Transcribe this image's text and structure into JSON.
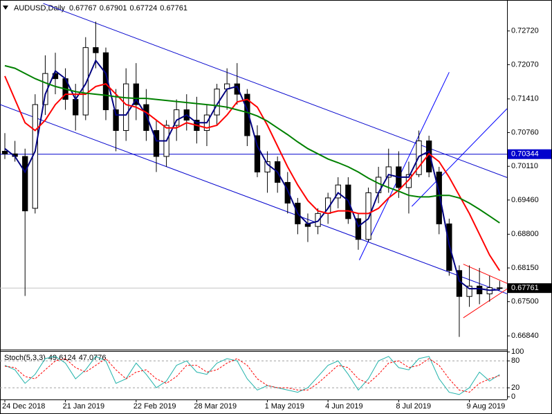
{
  "chart_data": [
    {
      "type": "candlestick",
      "title": "AUDUSD,Daily",
      "xlim": [
        -0.48,
        49.73
      ],
      "xticks": [
        {
          "value": 0,
          "label": "24 Dec 2018"
        },
        {
          "value": 6,
          "label": "21 Jan 2019"
        },
        {
          "value": 13,
          "label": "22 Feb 2019"
        },
        {
          "value": 19,
          "label": "28 Mar 2019"
        },
        {
          "value": 26,
          "label": "1 May 2019"
        },
        {
          "value": 32,
          "label": "4 Jun 2019"
        },
        {
          "value": 39,
          "label": "8 Jul 2019"
        },
        {
          "value": 46,
          "label": "9 Aug 2019"
        }
      ],
      "ylim": [
        0.66575,
        0.73317
      ],
      "yticks": [
        {
          "value": 0.6684,
          "label": "0.66840"
        },
        {
          "value": 0.675,
          "label": "0.67500"
        },
        {
          "value": 0.6815,
          "label": "0.68150"
        },
        {
          "value": 0.688,
          "label": "0.68800"
        },
        {
          "value": 0.6946,
          "label": "0.69460"
        },
        {
          "value": 0.7011,
          "label": "0.70110"
        },
        {
          "value": 0.7076,
          "label": "0.70760"
        },
        {
          "value": 0.7141,
          "label": "0.71410"
        },
        {
          "value": 0.7207,
          "label": "0.72070"
        },
        {
          "value": 0.7272,
          "label": "0.72720"
        }
      ],
      "open": [
        0.704,
        0.7035,
        0.703,
        0.693,
        0.713,
        0.719,
        0.718,
        0.714,
        0.711,
        0.724,
        0.723,
        0.712,
        0.708,
        0.717,
        0.713,
        0.708,
        0.703,
        0.709,
        0.712,
        0.71,
        0.708,
        0.711,
        0.716,
        0.717,
        0.715,
        0.707,
        0.7,
        0.702,
        0.698,
        0.694,
        0.69,
        0.6895,
        0.692,
        0.695,
        0.6975,
        0.691,
        0.687,
        0.696,
        0.699,
        0.701,
        0.697,
        0.6995,
        0.706,
        0.7,
        0.69,
        0.681,
        0.676,
        0.678,
        0.6765,
        0.67767
      ],
      "high": [
        0.7075,
        0.706,
        0.7045,
        0.715,
        0.7225,
        0.723,
        0.72,
        0.717,
        0.726,
        0.729,
        0.724,
        0.716,
        0.72,
        0.721,
        0.716,
        0.71,
        0.71,
        0.714,
        0.715,
        0.7145,
        0.713,
        0.717,
        0.72,
        0.721,
        0.716,
        0.709,
        0.704,
        0.703,
        0.7,
        0.695,
        0.692,
        0.693,
        0.696,
        0.699,
        0.699,
        0.692,
        0.697,
        0.701,
        0.7045,
        0.704,
        0.702,
        0.708,
        0.707,
        0.701,
        0.691,
        0.682,
        0.682,
        0.6815,
        0.68,
        0.67901
      ],
      "low": [
        0.7025,
        0.702,
        0.6761,
        0.692,
        0.711,
        0.715,
        0.712,
        0.708,
        0.71,
        0.72,
        0.71,
        0.704,
        0.706,
        0.71,
        0.706,
        0.7,
        0.701,
        0.706,
        0.708,
        0.7055,
        0.705,
        0.709,
        0.712,
        0.713,
        0.705,
        0.699,
        0.696,
        0.696,
        0.692,
        0.688,
        0.6865,
        0.688,
        0.69,
        0.693,
        0.69,
        0.685,
        0.6865,
        0.694,
        0.696,
        0.695,
        0.692,
        0.699,
        0.699,
        0.688,
        0.68,
        0.6682,
        0.674,
        0.6745,
        0.675,
        0.67724
      ],
      "close": [
        0.7035,
        0.703,
        0.6925,
        0.713,
        0.719,
        0.718,
        0.714,
        0.711,
        0.724,
        0.723,
        0.712,
        0.708,
        0.717,
        0.713,
        0.708,
        0.703,
        0.709,
        0.712,
        0.71,
        0.708,
        0.711,
        0.716,
        0.717,
        0.715,
        0.707,
        0.7,
        0.702,
        0.698,
        0.694,
        0.69,
        0.6895,
        0.692,
        0.695,
        0.6975,
        0.691,
        0.687,
        0.696,
        0.699,
        0.701,
        0.697,
        0.6995,
        0.706,
        0.7,
        0.69,
        0.681,
        0.676,
        0.678,
        0.6765,
        0.6777,
        0.67761
      ],
      "up_color": "#ffffff",
      "down_color": "#000000",
      "series": [
        {
          "color": "#000080",
          "values": [
            0.7045,
            0.703,
            0.7,
            0.704,
            0.715,
            0.7195,
            0.718,
            0.714,
            0.717,
            0.7215,
            0.719,
            0.711,
            0.711,
            0.714,
            0.711,
            0.706,
            0.706,
            0.71,
            0.711,
            0.7095,
            0.7095,
            0.713,
            0.716,
            0.7165,
            0.712,
            0.705,
            0.7015,
            0.7,
            0.6965,
            0.692,
            0.69,
            0.6905,
            0.693,
            0.696,
            0.6945,
            0.6895,
            0.691,
            0.696,
            0.6995,
            0.699,
            0.699,
            0.703,
            0.704,
            0.696,
            0.686,
            0.679,
            0.6775,
            0.6775,
            0.6772,
            0.6773
          ]
        },
        {
          "color": "#ff0000",
          "values": [
            0.7185,
            0.714,
            0.7095,
            0.708,
            0.71,
            0.713,
            0.715,
            0.715,
            0.715,
            0.7165,
            0.717,
            0.715,
            0.713,
            0.7125,
            0.7115,
            0.71,
            0.7085,
            0.7085,
            0.7095,
            0.709,
            0.7085,
            0.709,
            0.711,
            0.7135,
            0.714,
            0.7125,
            0.709,
            0.705,
            0.701,
            0.6975,
            0.6945,
            0.6925,
            0.692,
            0.6925,
            0.6925,
            0.692,
            0.692,
            0.693,
            0.695,
            0.6965,
            0.6985,
            0.701,
            0.7035,
            0.702,
            0.699,
            0.6955,
            0.692,
            0.688,
            0.684,
            0.681
          ]
        },
        {
          "color": "#008000",
          "values": [
            0.7205,
            0.72,
            0.719,
            0.718,
            0.7172,
            0.7165,
            0.716,
            0.7155,
            0.7152,
            0.715,
            0.7148,
            0.7145,
            0.7143,
            0.7142,
            0.7142,
            0.714,
            0.7138,
            0.7136,
            0.7134,
            0.7132,
            0.713,
            0.7128,
            0.7125,
            0.712,
            0.7115,
            0.7108,
            0.7098,
            0.7085,
            0.7072,
            0.7058,
            0.7045,
            0.7035,
            0.7025,
            0.7018,
            0.701,
            0.7,
            0.6988,
            0.6978,
            0.697,
            0.6963,
            0.6955,
            0.6952,
            0.6952,
            0.6955,
            0.6955,
            0.695,
            0.694,
            0.6928,
            0.6915,
            0.6902
          ]
        }
      ],
      "hlines": [
        {
          "value": 0.70344,
          "color": "#0000cd"
        }
      ],
      "trendlines": [
        {
          "x": [
            3.8,
            49.73
          ],
          "y": [
            0.73251,
            0.69894
          ],
          "color": "#0000cd"
        },
        {
          "x": [
            -0.48,
            49.73
          ],
          "y": [
            0.71301,
            0.67652
          ],
          "color": "#0000cd"
        },
        {
          "x": [
            35.1,
            44.0
          ],
          "y": [
            0.68302,
            0.71924
          ],
          "color": "#0000ff"
        },
        {
          "x": [
            40.3,
            49.73
          ],
          "y": [
            0.69337,
            0.71221
          ],
          "color": "#0000ff"
        },
        {
          "x": [
            45.4,
            49.73
          ],
          "y": [
            0.68223,
            0.67852
          ],
          "color": "#ff0000"
        },
        {
          "x": [
            45.4,
            49.73
          ],
          "y": [
            0.67188,
            0.67745
          ],
          "color": "#ff0000"
        }
      ]
    },
    {
      "type": "line",
      "title": "Stoch(5,3,3)",
      "ylim": [
        -6,
        102
      ],
      "yticks": [
        0,
        20,
        80,
        100
      ],
      "levels": [
        20,
        80
      ],
      "series": [
        {
          "color": "#20b2aa",
          "values": [
            70,
            60,
            30,
            50,
            85,
            90,
            75,
            40,
            60,
            90,
            80,
            30,
            40,
            75,
            50,
            20,
            35,
            70,
            80,
            55,
            50,
            75,
            85,
            80,
            40,
            15,
            25,
            20,
            15,
            10,
            20,
            45,
            70,
            80,
            50,
            15,
            40,
            80,
            90,
            65,
            60,
            85,
            90,
            40,
            10,
            5,
            20,
            55,
            35,
            49.6124
          ]
        },
        {
          "color": "#ff0000",
          "dashed": true,
          "values": [
            68,
            65,
            45,
            40,
            60,
            80,
            85,
            65,
            55,
            70,
            85,
            60,
            40,
            55,
            60,
            40,
            30,
            45,
            70,
            70,
            55,
            60,
            75,
            85,
            70,
            40,
            25,
            20,
            20,
            15,
            15,
            30,
            50,
            70,
            65,
            40,
            30,
            50,
            75,
            80,
            65,
            70,
            85,
            70,
            40,
            15,
            10,
            30,
            40,
            47.0776
          ]
        }
      ]
    }
  ]
}
